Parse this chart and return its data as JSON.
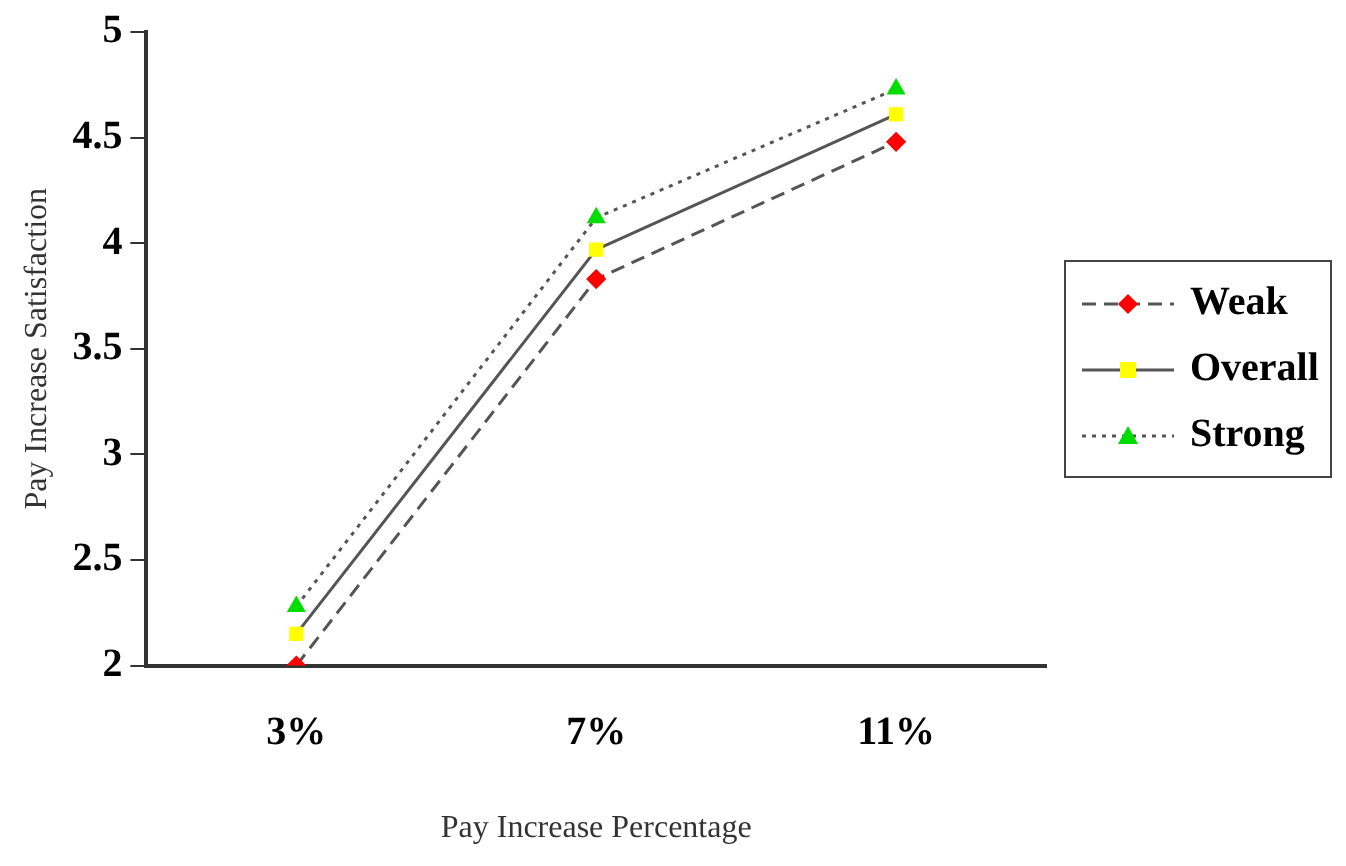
{
  "chart_data": {
    "type": "line",
    "xlabel": "Pay Increase Percentage",
    "ylabel": "Pay Increase Satisfaction",
    "categories": [
      "3%",
      "7%",
      "11%"
    ],
    "series": [
      {
        "name": "Weak",
        "color": "#ff0000",
        "values": [
          2.0,
          3.83,
          4.48
        ],
        "marker": "diamond",
        "line_style": "dashed"
      },
      {
        "name": "Overall",
        "color": "#ffff00",
        "values": [
          2.15,
          3.97,
          4.61
        ],
        "marker": "square",
        "line_style": "solid"
      },
      {
        "name": "Strong",
        "color": "#00dd00",
        "values": [
          2.28,
          4.12,
          4.73
        ],
        "marker": "triangle",
        "line_style": "dotted"
      }
    ],
    "ylim": [
      2,
      5
    ],
    "yticks": [
      2,
      2.5,
      3,
      3.5,
      4,
      4.5,
      5
    ],
    "grid": false,
    "legend": "right"
  }
}
